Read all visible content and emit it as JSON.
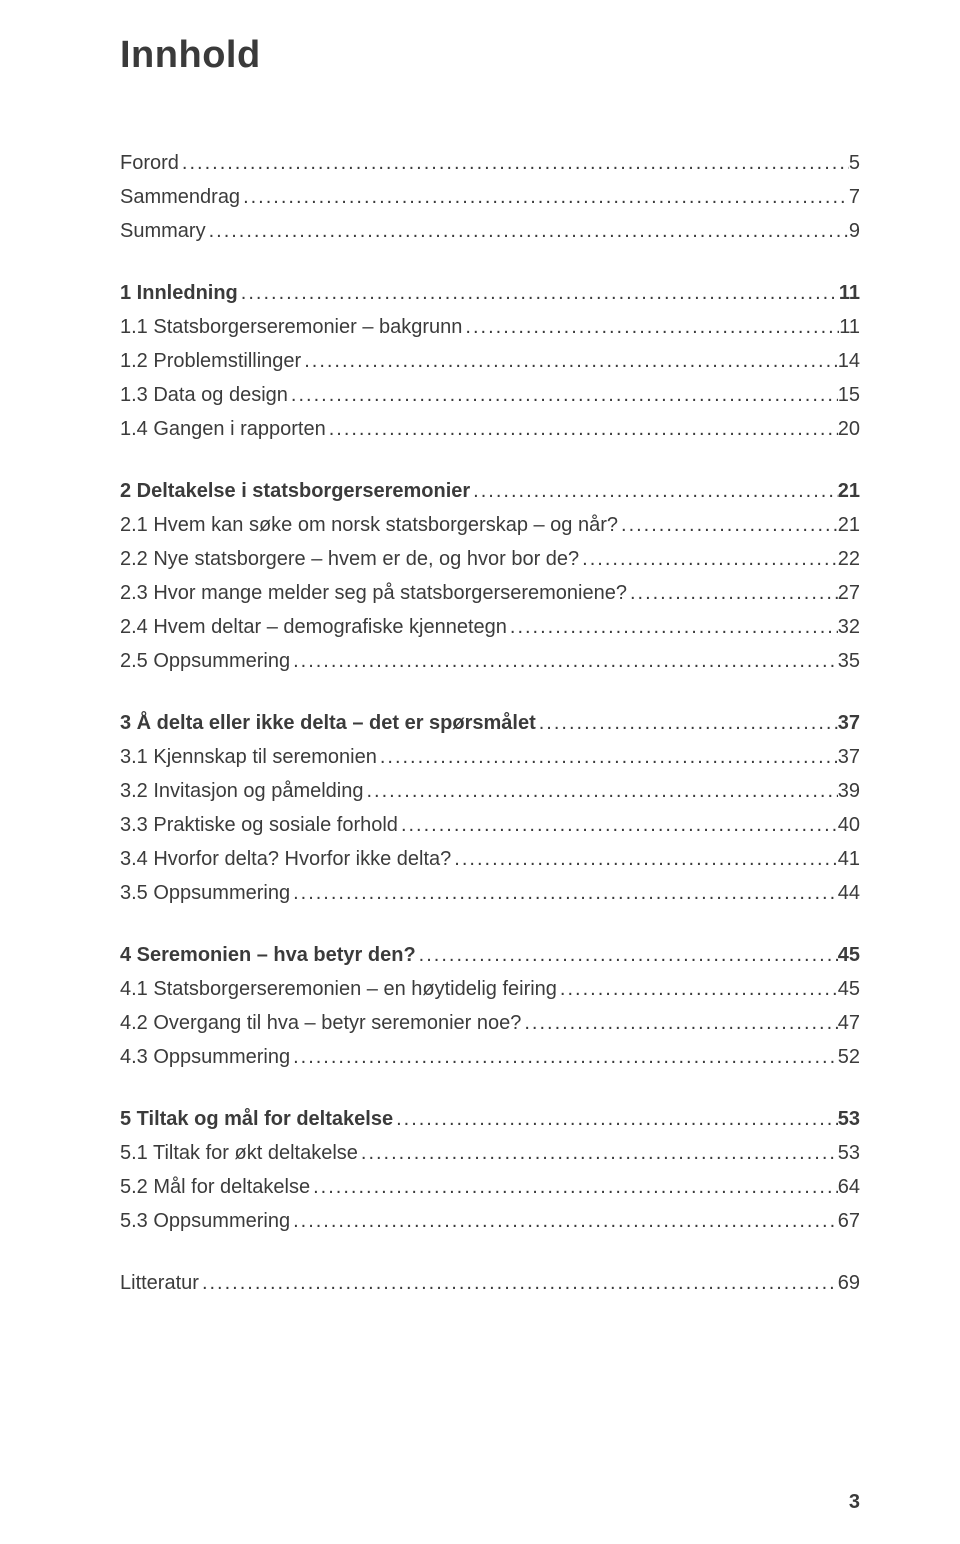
{
  "title": "Innhold",
  "page_number": "3",
  "text_color": "#3b3b3b",
  "background_color": "#ffffff",
  "title_fontsize": 38,
  "body_fontsize": 20,
  "entries": [
    {
      "label": "Forord",
      "page": "5",
      "bold": false,
      "gap_before": false
    },
    {
      "label": "Sammendrag",
      "page": "7",
      "bold": false,
      "gap_before": false
    },
    {
      "label": "Summary",
      "page": "9",
      "bold": false,
      "gap_before": false
    },
    {
      "label": "1 Innledning",
      "page": "11",
      "bold": true,
      "gap_before": true
    },
    {
      "label": "1.1 Statsborgerseremonier – bakgrunn",
      "page": "11",
      "bold": false,
      "gap_before": false
    },
    {
      "label": "1.2 Problemstillinger",
      "page": "14",
      "bold": false,
      "gap_before": false
    },
    {
      "label": "1.3 Data og design",
      "page": "15",
      "bold": false,
      "gap_before": false
    },
    {
      "label": "1.4 Gangen i rapporten",
      "page": "20",
      "bold": false,
      "gap_before": false
    },
    {
      "label": "2 Deltakelse i statsborgerseremonier",
      "page": "21",
      "bold": true,
      "gap_before": true
    },
    {
      "label": "2.1 Hvem kan søke om norsk statsborgerskap – og når?",
      "page": "21",
      "bold": false,
      "gap_before": false
    },
    {
      "label": "2.2 Nye statsborgere – hvem er de, og hvor bor de?",
      "page": "22",
      "bold": false,
      "gap_before": false
    },
    {
      "label": "2.3 Hvor mange melder seg på statsborgerseremoniene?",
      "page": "27",
      "bold": false,
      "gap_before": false
    },
    {
      "label": "2.4 Hvem deltar – demografiske kjennetegn",
      "page": "32",
      "bold": false,
      "gap_before": false
    },
    {
      "label": "2.5 Oppsummering",
      "page": "35",
      "bold": false,
      "gap_before": false
    },
    {
      "label": "3 Å delta eller ikke delta – det er spørsmålet",
      "page": "37",
      "bold": true,
      "gap_before": true
    },
    {
      "label": "3.1 Kjennskap til seremonien",
      "page": "37",
      "bold": false,
      "gap_before": false
    },
    {
      "label": "3.2 Invitasjon og påmelding",
      "page": "39",
      "bold": false,
      "gap_before": false
    },
    {
      "label": "3.3 Praktiske og sosiale forhold",
      "page": "40",
      "bold": false,
      "gap_before": false
    },
    {
      "label": "3.4 Hvorfor delta? Hvorfor ikke delta?",
      "page": "41",
      "bold": false,
      "gap_before": false
    },
    {
      "label": "3.5 Oppsummering",
      "page": "44",
      "bold": false,
      "gap_before": false
    },
    {
      "label": "4 Seremonien – hva betyr den?",
      "page": "45",
      "bold": true,
      "gap_before": true
    },
    {
      "label": "4.1 Statsborgerseremonien – en høytidelig feiring",
      "page": "45",
      "bold": false,
      "gap_before": false
    },
    {
      "label": "4.2 Overgang til hva – betyr seremonier noe?",
      "page": "47",
      "bold": false,
      "gap_before": false
    },
    {
      "label": "4.3 Oppsummering",
      "page": "52",
      "bold": false,
      "gap_before": false
    },
    {
      "label": "5 Tiltak og mål for deltakelse",
      "page": "53",
      "bold": true,
      "gap_before": true
    },
    {
      "label": "5.1 Tiltak for økt deltakelse",
      "page": "53",
      "bold": false,
      "gap_before": false
    },
    {
      "label": "5.2 Mål for deltakelse",
      "page": "64",
      "bold": false,
      "gap_before": false
    },
    {
      "label": "5.3 Oppsummering",
      "page": "67",
      "bold": false,
      "gap_before": false
    },
    {
      "label": "Litteratur",
      "page": "69",
      "bold": false,
      "gap_before": true
    }
  ]
}
